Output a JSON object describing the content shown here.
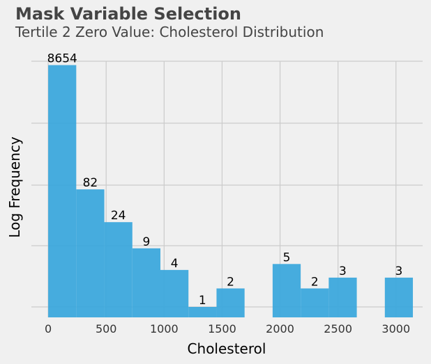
{
  "title": "Mask Variable Selection",
  "subtitle": "Tertile 2 Zero Value: Cholesterol Distribution",
  "colors": {
    "bar": "#3ca8dc",
    "grid": "#cbcbcb",
    "background": "#f0f0f0",
    "text": "#000000",
    "title": "#444444"
  },
  "chart_data": {
    "type": "bar",
    "subtype": "histogram",
    "xlabel": "Cholesterol",
    "ylabel": "Log Frequency",
    "xlim": [
      -145,
      3230
    ],
    "x_ticks": [
      0,
      500,
      1000,
      1500,
      2000,
      2500,
      3000
    ],
    "x_tick_labels": [
      "0",
      "500",
      "1000",
      "1500",
      "2000",
      "2500",
      "3000"
    ],
    "y_scale": "log",
    "y_tick_labels_shown": false,
    "grid": true,
    "bins": [
      {
        "start": 0,
        "end": 242,
        "count": 8654
      },
      {
        "start": 242,
        "end": 484,
        "count": 82
      },
      {
        "start": 484,
        "end": 726,
        "count": 24
      },
      {
        "start": 726,
        "end": 968,
        "count": 9
      },
      {
        "start": 968,
        "end": 1210,
        "count": 4
      },
      {
        "start": 1210,
        "end": 1452,
        "count": 1
      },
      {
        "start": 1452,
        "end": 1694,
        "count": 2
      },
      {
        "start": 1936,
        "end": 2178,
        "count": 5
      },
      {
        "start": 2178,
        "end": 2420,
        "count": 2
      },
      {
        "start": 2420,
        "end": 2662,
        "count": 3
      },
      {
        "start": 2904,
        "end": 3146,
        "count": 3
      }
    ]
  }
}
